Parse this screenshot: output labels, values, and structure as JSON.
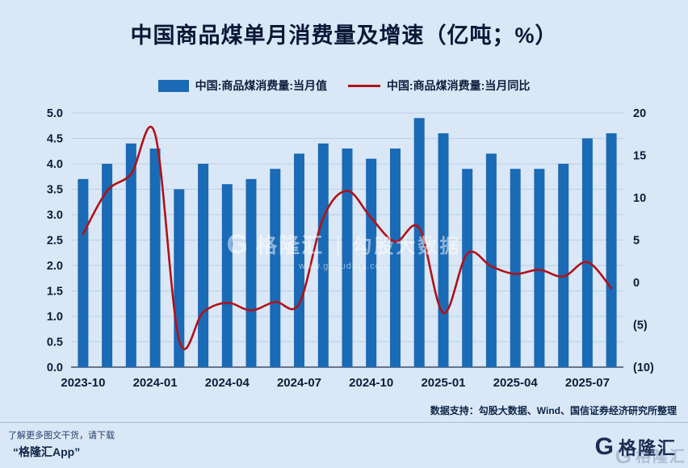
{
  "title": "中国商品煤单月消费量及增速（亿吨；%）",
  "legend": {
    "bar_label": "中国:商品煤消费量:当月值",
    "line_label": "中国:商品煤消费量:当月同比"
  },
  "chart_data": {
    "type": "bar+line",
    "categories": [
      "2023-10",
      "2023-11",
      "2023-12",
      "2024-01",
      "2024-02",
      "2024-03",
      "2024-04",
      "2024-05",
      "2024-06",
      "2024-07",
      "2024-08",
      "2024-09",
      "2024-10",
      "2024-11",
      "2024-12",
      "2025-01",
      "2025-02",
      "2025-03",
      "2025-04",
      "2025-05",
      "2025-06",
      "2025-07",
      "2025-08"
    ],
    "series": [
      {
        "name": "中国:商品煤消费量:当月值",
        "type": "bar",
        "axis": "left",
        "color": "#1a6ab5",
        "values": [
          3.7,
          4.0,
          4.4,
          4.3,
          3.5,
          4.0,
          3.6,
          3.7,
          3.9,
          4.2,
          4.4,
          4.3,
          4.1,
          4.3,
          4.9,
          4.6,
          3.9,
          4.2,
          3.9,
          3.9,
          4.0,
          4.5,
          4.6
        ]
      },
      {
        "name": "中国:商品煤消费量:当月同比",
        "type": "line",
        "axis": "right",
        "color": "#b01219",
        "values": [
          5.7,
          10.8,
          12.8,
          17.5,
          -6.8,
          -3.5,
          -2.4,
          -3.3,
          -2.3,
          -2.5,
          7.6,
          10.8,
          7.6,
          4.8,
          6.4,
          -3.6,
          3.4,
          1.9,
          1.0,
          1.5,
          0.7,
          2.4,
          -0.7
        ]
      }
    ],
    "left_axis": {
      "min": 0,
      "max": 5,
      "ticks": [
        {
          "v": 5.0,
          "t": "5.0"
        },
        {
          "v": 4.5,
          "t": "4.5"
        },
        {
          "v": 4.0,
          "t": "4.0"
        },
        {
          "v": 3.5,
          "t": "3.5"
        },
        {
          "v": 3.0,
          "t": "3.0"
        },
        {
          "v": 2.5,
          "t": "2.5"
        },
        {
          "v": 2.0,
          "t": "2.0"
        },
        {
          "v": 1.5,
          "t": "1.5"
        },
        {
          "v": 1.0,
          "t": "1.0"
        },
        {
          "v": 0.5,
          "t": "0.5"
        },
        {
          "v": 0.0,
          "t": "0.0"
        }
      ]
    },
    "right_axis": {
      "min": -10,
      "max": 20,
      "ticks": [
        {
          "v": 20,
          "t": "20"
        },
        {
          "v": 15,
          "t": "15"
        },
        {
          "v": 10,
          "t": "10"
        },
        {
          "v": 5,
          "t": "5"
        },
        {
          "v": 0,
          "t": "0"
        },
        {
          "v": -5,
          "t": "(5)"
        },
        {
          "v": -10,
          "t": "(10)"
        }
      ]
    },
    "x_tick_indices": [
      0,
      3,
      6,
      9,
      12,
      15,
      18,
      21
    ],
    "grid": true,
    "legend_position": "top"
  },
  "watermark": {
    "logo_letter": "G",
    "brand": "格隆汇",
    "divider": "|",
    "partner": "勾股大数据",
    "url": "www.gogudata.com"
  },
  "footer": {
    "hint": "了解更多图文干货，请下载",
    "app_name": "“格隆汇App”",
    "data_support": "数据支持：勾股大数据、Wind、国信证券经济研究所整理",
    "logo_letter": "G",
    "logo_text": "格隆汇"
  }
}
